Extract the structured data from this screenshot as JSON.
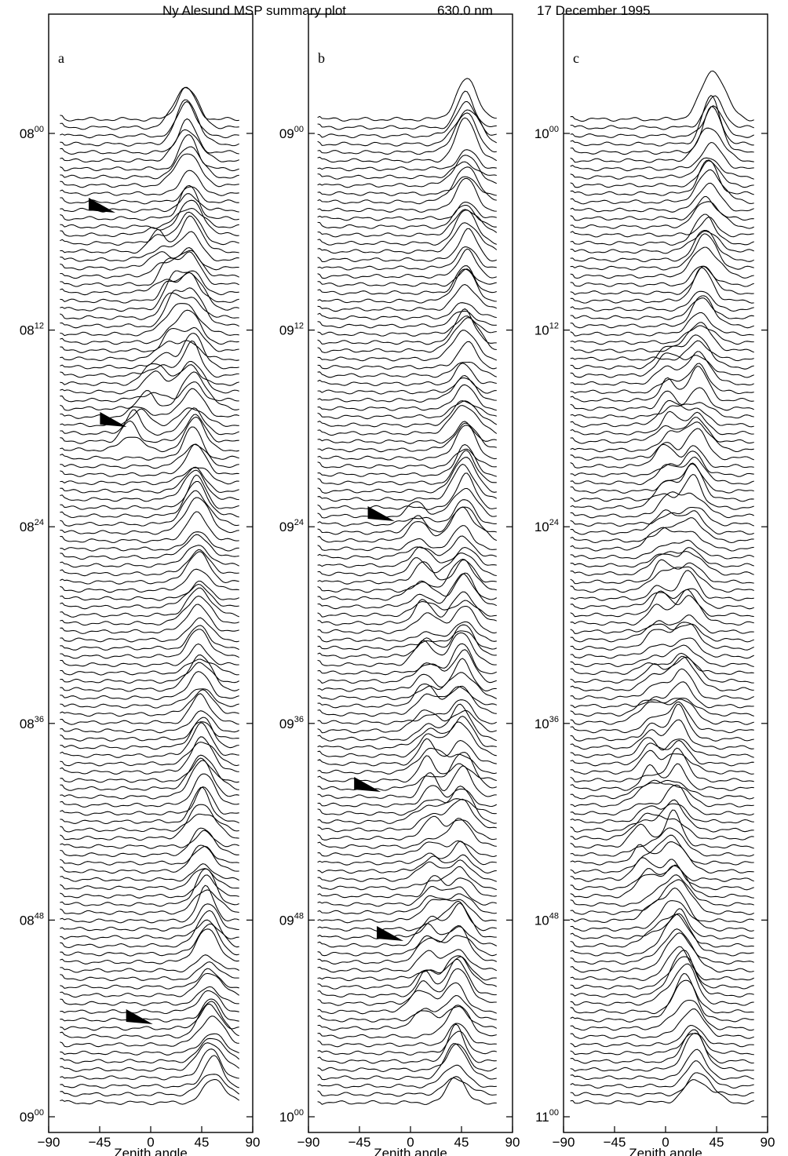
{
  "title": {
    "station": "Ny Alesund MSP summary plot",
    "wavelength": "630.0 nm",
    "date": "17 December 1995"
  },
  "chart_data": [
    {
      "type": "line",
      "panel": "a",
      "x_ticks": [
        "−90",
        "−45",
        "0",
        "45",
        "90"
      ],
      "x_values": [
        -90,
        -45,
        0,
        45,
        90
      ],
      "xlabel": "Zenith angle",
      "xlim": [
        -90,
        90
      ],
      "time_ticks": [
        {
          "hh": "08",
          "mm": "00"
        },
        {
          "hh": "08",
          "mm": "12"
        },
        {
          "hh": "08",
          "mm": "24"
        },
        {
          "hh": "08",
          "mm": "36"
        },
        {
          "hh": "08",
          "mm": "48"
        },
        {
          "hh": "09",
          "mm": "00"
        }
      ],
      "trace_count": 120,
      "trace_x_range": [
        -80,
        78
      ],
      "main_peak_track": [
        [
          0,
          32
        ],
        [
          30,
          36
        ],
        [
          60,
          42
        ],
        [
          90,
          47
        ],
        [
          120,
          55
        ]
      ],
      "secondary_peak_track": [
        [
          14,
          2
        ],
        [
          26,
          22
        ],
        [
          40,
          -20
        ]
      ],
      "arrow_zenith": [
        -45,
        -35,
        -12
      ]
    },
    {
      "type": "line",
      "panel": "b",
      "x_ticks": [
        "−90",
        "−45",
        "0",
        "45",
        "90"
      ],
      "x_values": [
        -90,
        -45,
        0,
        45,
        90
      ],
      "xlabel": "Zenith angle",
      "xlim": [
        -90,
        90
      ],
      "time_ticks": [
        {
          "hh": "09",
          "mm": "00"
        },
        {
          "hh": "09",
          "mm": "12"
        },
        {
          "hh": "09",
          "mm": "24"
        },
        {
          "hh": "09",
          "mm": "36"
        },
        {
          "hh": "09",
          "mm": "48"
        },
        {
          "hh": "10",
          "mm": "00"
        }
      ],
      "trace_count": 120,
      "trace_x_range": [
        -82,
        76
      ],
      "main_peak_track": [
        [
          0,
          50
        ],
        [
          40,
          48
        ],
        [
          80,
          45
        ],
        [
          120,
          40
        ]
      ],
      "secondary_peak_track": [
        [
          48,
          5
        ],
        [
          60,
          12
        ],
        [
          95,
          20
        ],
        [
          110,
          10
        ]
      ],
      "arrow_zenith": [
        -40,
        -20,
        -28
      ]
    },
    {
      "type": "line",
      "panel": "c",
      "x_ticks": [
        "−90",
        "−45",
        "0",
        "45",
        "90"
      ],
      "x_values": [
        -90,
        -45,
        0,
        45,
        90
      ],
      "xlabel": "Zenith angle",
      "xlim": [
        -90,
        90
      ],
      "time_ticks": [
        {
          "hh": "10",
          "mm": "00"
        },
        {
          "hh": "10",
          "mm": "12"
        },
        {
          "hh": "10",
          "mm": "24"
        },
        {
          "hh": "10",
          "mm": "36"
        },
        {
          "hh": "10",
          "mm": "48"
        },
        {
          "hh": "11",
          "mm": "00"
        }
      ],
      "trace_count": 120,
      "trace_x_range": [
        -84,
        78
      ],
      "main_peak_track": [
        [
          0,
          42
        ],
        [
          30,
          30
        ],
        [
          60,
          20
        ],
        [
          90,
          5
        ],
        [
          120,
          30
        ]
      ],
      "secondary_peak_track": [
        [
          30,
          5
        ],
        [
          60,
          -5
        ],
        [
          90,
          -20
        ],
        [
          110,
          15
        ]
      ],
      "arrow_zenith": []
    }
  ]
}
